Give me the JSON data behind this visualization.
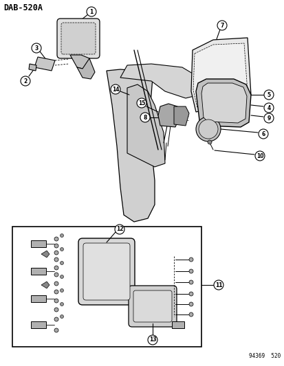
{
  "title": "DAB-520A",
  "footer": "94369  520",
  "bg_color": "#ffffff",
  "line_color": "#000000",
  "fig_width": 4.14,
  "fig_height": 5.33,
  "dpi": 100
}
